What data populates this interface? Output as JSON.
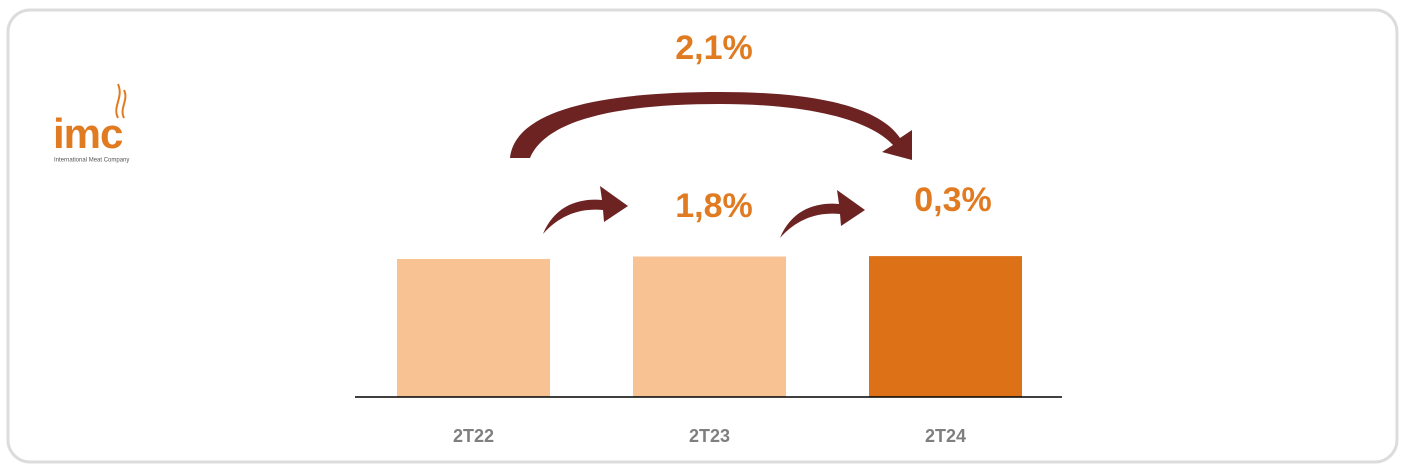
{
  "logo": {
    "name": "imc",
    "tagline": "International Meat Company"
  },
  "chart_data": {
    "type": "bar",
    "categories": [
      "2T22",
      "2T23",
      "2T24"
    ],
    "values": [
      100,
      101.8,
      102.1
    ],
    "colors": [
      "#f8c293",
      "#f8c293",
      "#dd7118"
    ],
    "ylim": [
      0,
      110
    ],
    "annotations": [
      {
        "text": "2,1%",
        "from": 0,
        "to": 2
      },
      {
        "text": "1,8%",
        "from": 0,
        "to": 1
      },
      {
        "text": "0,3%",
        "from": 1,
        "to": 2
      }
    ]
  }
}
